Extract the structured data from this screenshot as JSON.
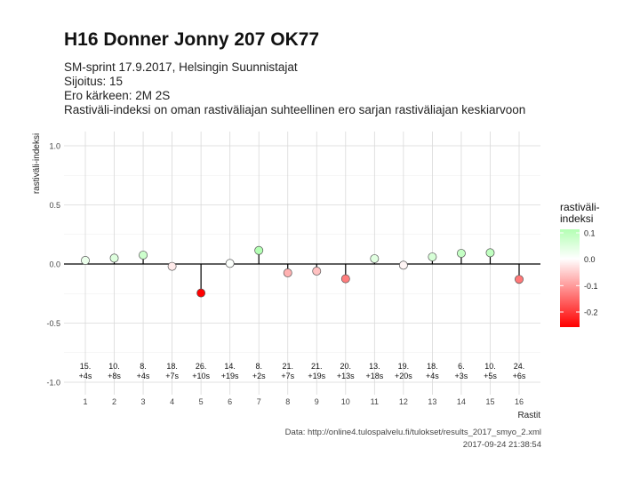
{
  "header": {
    "title": "H16 Donner Jonny 207 OK77",
    "line1": "SM-sprint 17.9.2017, Helsingin Suunnistajat",
    "line2": "Sijoitus: 15",
    "line3": "Ero kärkeen: 2M 2S",
    "line4": "Rastiväli-indeksi on oman rastiväliajan suhteellinen ero sarjan rastiväliajan keskiarvoon"
  },
  "footer": {
    "source": "Data: http://online4.tulospalvelu.fi/tulokset/results_2017_smyo_2.xml",
    "timestamp": "2017-09-24 21:38:54"
  },
  "legend": {
    "title": "rastiväli-\nindeksi",
    "ticks": [
      "0.1",
      "0.0",
      "-0.1",
      "-0.2"
    ]
  },
  "chart_data": {
    "type": "scatter",
    "xlabel": "Rastit",
    "ylabel": "rastiväli-indeksi",
    "ylim": [
      -1.0,
      1.0
    ],
    "yticks": [
      "1.0",
      "0.5",
      "0.0",
      "-0.5",
      "-1.0"
    ],
    "ytick_values": [
      1.0,
      0.5,
      0.0,
      -0.5,
      -1.0
    ],
    "x": [
      1,
      2,
      3,
      4,
      5,
      6,
      7,
      8,
      9,
      10,
      11,
      12,
      13,
      14,
      15,
      16
    ],
    "values": [
      0.03,
      0.05,
      0.075,
      -0.02,
      -0.245,
      0.005,
      0.115,
      -0.075,
      -0.06,
      -0.125,
      0.045,
      -0.01,
      0.06,
      0.09,
      0.095,
      -0.13
    ],
    "labels_line1": [
      "15.",
      "10.",
      "8.",
      "18.",
      "26.",
      "14.",
      "8.",
      "21.",
      "21.",
      "20.",
      "13.",
      "19.",
      "18.",
      "6.",
      "10.",
      "24."
    ],
    "labels_line2": [
      "+4s",
      "+8s",
      "+4s",
      "+7s",
      "+10s",
      "+19s",
      "+2s",
      "+7s",
      "+19s",
      "+13s",
      "+18s",
      "+20s",
      "+4s",
      "+3s",
      "+5s",
      "+6s"
    ],
    "grid": true,
    "color_scale": {
      "low": "#ff0000",
      "mid": "#ffffff",
      "high": "#b3ffb3"
    }
  }
}
